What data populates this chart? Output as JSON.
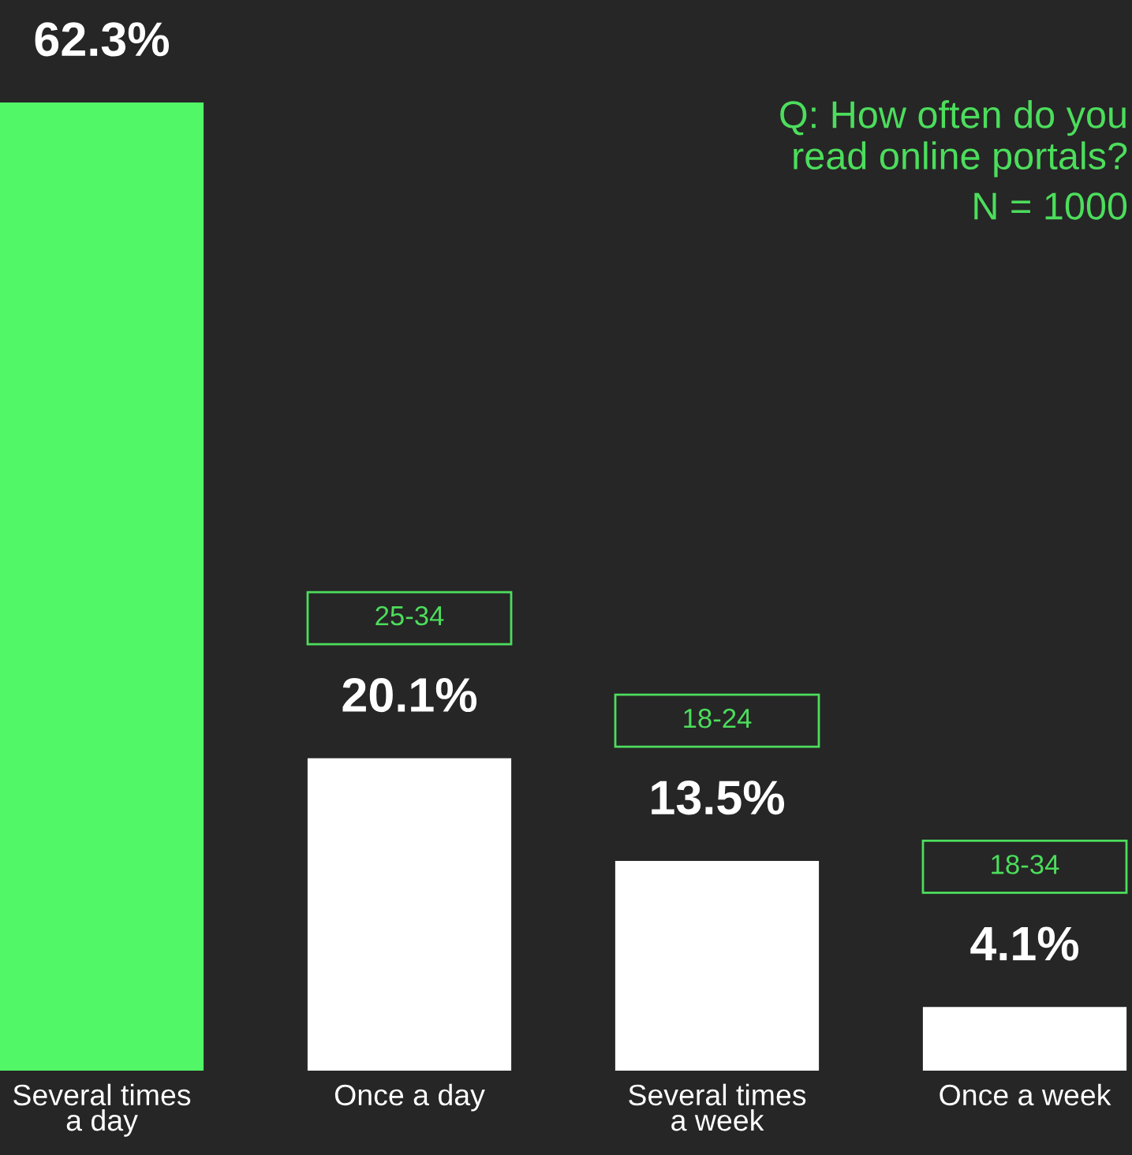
{
  "chart_data": {
    "type": "bar",
    "title": "Q: How often do you\nread online portals?",
    "subtitle": "N = 1000",
    "categories": [
      "Several times\na day",
      "Once a day",
      "Several times\na week",
      "Once a week"
    ],
    "values": [
      62.3,
      20.1,
      13.5,
      4.1
    ],
    "colors": [
      "#52f767",
      "#ffffff",
      "#ffffff",
      "#ffffff"
    ],
    "value_labels": [
      "62.3%",
      "20.1%",
      "13.5%",
      "4.1%"
    ],
    "annotations": [
      "25-34",
      "18-24",
      "18-34"
    ],
    "tick_labels": "x",
    "grid": false
  }
}
